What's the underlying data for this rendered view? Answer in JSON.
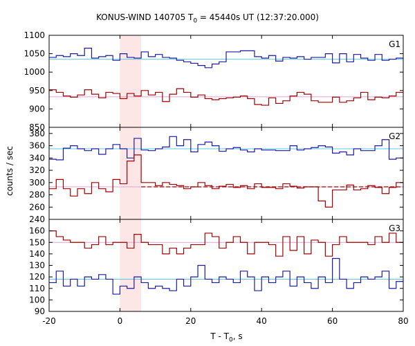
{
  "title": {
    "prefix": "KONUS-WIND 140705 T",
    "sub": "0",
    "suffix": " = 45440s UT (12:37:20.000)"
  },
  "xlabel": {
    "prefix": "T - T",
    "sub": "0",
    "suffix": ", s"
  },
  "ylabel": "counts / sec",
  "colors": {
    "blue": "#1a1aa6",
    "red": "#a00000",
    "cyan": "#5ac8e6",
    "pink": "#e6a0d2",
    "shade": "#fde6e6"
  },
  "chart_data": [
    {
      "type": "line",
      "label": "G1",
      "x_range": [
        -20,
        80
      ],
      "x_ticks": [
        -20,
        0,
        20,
        40,
        60,
        80
      ],
      "y_range": [
        850,
        1100
      ],
      "y_ticks": [
        850,
        900,
        950,
        1000,
        1050,
        1100
      ],
      "shaded_interval": [
        0,
        6
      ],
      "bin_width": 2,
      "x_start": -20,
      "series": [
        {
          "color": "blue",
          "values": [
            1040,
            1045,
            1042,
            1050,
            1045,
            1065,
            1038,
            1042,
            1045,
            1032,
            1050,
            1040,
            1038,
            1055,
            1042,
            1048,
            1040,
            1038,
            1032,
            1028,
            1024,
            1018,
            1012,
            1022,
            1028,
            1055,
            1055,
            1058,
            1058,
            1042,
            1038,
            1045,
            1030,
            1040,
            1038,
            1042,
            1035,
            1040,
            1040,
            1050,
            1025,
            1050,
            1028,
            1048,
            1038,
            1032,
            1048,
            1032,
            1035,
            1038,
            1045
          ]
        },
        {
          "color": "red",
          "values": [
            952,
            945,
            935,
            932,
            938,
            952,
            940,
            930,
            945,
            942,
            928,
            942,
            935,
            950,
            938,
            945,
            920,
            940,
            955,
            945,
            932,
            938,
            928,
            925,
            928,
            930,
            932,
            935,
            928,
            912,
            910,
            930,
            915,
            922,
            935,
            945,
            940,
            922,
            918,
            918,
            932,
            918,
            922,
            930,
            945,
            925,
            932,
            930,
            935,
            945,
            950
          ]
        }
      ],
      "ref_lines": [
        {
          "color": "cyan",
          "value": 1035
        },
        {
          "color": "pink",
          "value": 933
        }
      ]
    },
    {
      "type": "line",
      "label": "G2",
      "x_range": [
        -20,
        80
      ],
      "x_ticks": [
        -20,
        0,
        20,
        40,
        60,
        80
      ],
      "y_range": [
        240,
        390
      ],
      "y_ticks": [
        240,
        260,
        280,
        300,
        320,
        340,
        360,
        380
      ],
      "shaded_interval": [
        0,
        6
      ],
      "bin_width": 2,
      "x_start": -20,
      "series": [
        {
          "color": "blue",
          "values": [
            338,
            337,
            356,
            360,
            355,
            352,
            355,
            346,
            355,
            362,
            355,
            340,
            372,
            353,
            352,
            355,
            358,
            375,
            360,
            370,
            350,
            362,
            366,
            360,
            351,
            355,
            357,
            353,
            350,
            355,
            353,
            353,
            352,
            352,
            360,
            353,
            355,
            357,
            360,
            358,
            348,
            350,
            345,
            355,
            352,
            352,
            360,
            370,
            338,
            340,
            348
          ]
        },
        {
          "color": "red",
          "values": [
            290,
            305,
            290,
            278,
            290,
            282,
            300,
            290,
            285,
            305,
            298,
            335,
            345,
            300,
            300,
            295,
            300,
            297,
            295,
            290,
            293,
            300,
            295,
            290,
            294,
            297,
            292,
            295,
            290,
            298,
            292,
            292,
            290,
            298,
            294,
            291,
            293,
            293,
            270,
            260,
            288,
            288,
            296,
            288,
            290,
            295,
            292,
            282,
            292,
            300,
            300
          ]
        }
      ],
      "ref_lines": [
        {
          "color": "cyan",
          "value": 355
        },
        {
          "color": "pink",
          "value": 293
        },
        {
          "color": "red",
          "value": 293,
          "dashed": true,
          "x_from": 6
        }
      ]
    },
    {
      "type": "line",
      "label": "G3",
      "x_range": [
        -20,
        80
      ],
      "x_ticks": [
        -20,
        0,
        20,
        40,
        60,
        80
      ],
      "y_range": [
        90,
        170
      ],
      "y_ticks": [
        90,
        100,
        110,
        120,
        130,
        140,
        150,
        160
      ],
      "shaded_interval": [
        0,
        6
      ],
      "bin_width": 2,
      "x_start": -20,
      "series": [
        {
          "color": "red",
          "values": [
            160,
            155,
            152,
            150,
            150,
            145,
            148,
            155,
            148,
            150,
            150,
            145,
            157,
            150,
            148,
            148,
            140,
            145,
            140,
            145,
            148,
            148,
            158,
            155,
            145,
            150,
            155,
            150,
            140,
            150,
            150,
            148,
            138,
            155,
            143,
            155,
            140,
            152,
            150,
            138,
            148,
            155,
            150,
            150,
            150,
            148,
            155,
            150,
            158,
            150,
            150
          ]
        },
        {
          "color": "blue",
          "values": [
            115,
            125,
            112,
            118,
            112,
            120,
            118,
            122,
            118,
            105,
            112,
            110,
            120,
            115,
            110,
            112,
            110,
            108,
            118,
            112,
            120,
            130,
            118,
            115,
            120,
            118,
            115,
            125,
            120,
            108,
            120,
            115,
            120,
            125,
            112,
            120,
            115,
            110,
            120,
            115,
            136,
            118,
            110,
            115,
            120,
            118,
            120,
            125,
            110,
            116,
            118
          ]
        }
      ],
      "ref_lines": [
        {
          "color": "cyan",
          "value": 118
        },
        {
          "color": "pink",
          "value": 150
        }
      ]
    }
  ]
}
